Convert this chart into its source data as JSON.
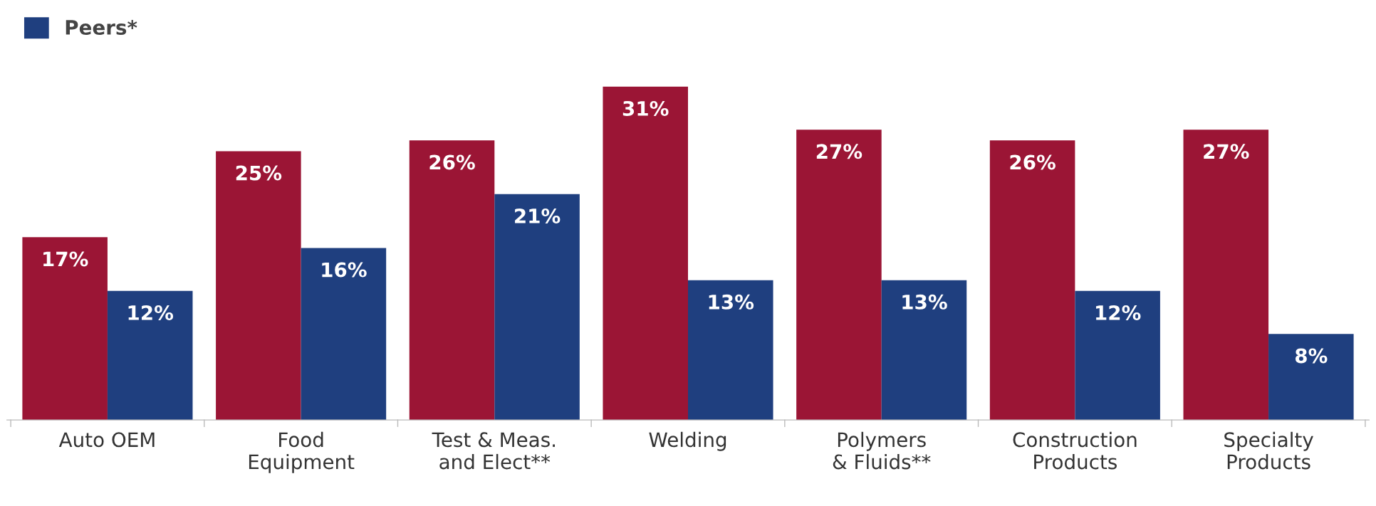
{
  "chart_data": {
    "type": "bar",
    "categories": [
      "Auto OEM",
      "Food\nEquipment",
      "Test & Meas.\nand Elect**",
      "Welding",
      "Polymers\n& Fluids**",
      "Construction\nProducts",
      "Specialty\nProducts"
    ],
    "series": [
      {
        "color": "#9b1535",
        "values": [
          17,
          25,
          26,
          31,
          27,
          26,
          27
        ],
        "value_labels": [
          "17%",
          "25%",
          "26%",
          "31%",
          "27%",
          "26%",
          "27%"
        ]
      },
      {
        "name": "Peers*",
        "color": "#1f3f7f",
        "values": [
          12,
          16,
          21,
          13,
          13,
          12,
          8
        ],
        "value_labels": [
          "12%",
          "16%",
          "21%",
          "13%",
          "13%",
          "12%",
          "8%"
        ]
      }
    ],
    "legend": "top left",
    "grid": false
  }
}
